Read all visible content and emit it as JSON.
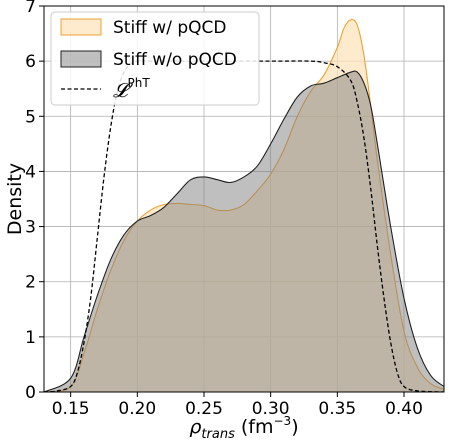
{
  "chart_data": {
    "type": "area",
    "xlabel": "ρ_trans (fm⁻³)",
    "ylabel": "Density",
    "xlim": [
      0.13,
      0.43
    ],
    "ylim": [
      0,
      7.0
    ],
    "x_ticks": [
      0.15,
      0.2,
      0.25,
      0.3,
      0.35,
      0.4
    ],
    "x_tick_labels": [
      "0.15",
      "0.20",
      "0.25",
      "0.30",
      "0.35",
      "0.40"
    ],
    "y_ticks": [
      0,
      1,
      2,
      3,
      4,
      5,
      6,
      7
    ],
    "y_tick_labels": [
      "0",
      "1",
      "2",
      "3",
      "4",
      "5",
      "6",
      "7"
    ],
    "grid": true,
    "legend_position": "top-left",
    "series": [
      {
        "name": "Stiff w/ pQCD",
        "style": "filled",
        "fill": "#fde3b8",
        "stroke": "#f0a030",
        "x": [
          0.13,
          0.15,
          0.16,
          0.17,
          0.18,
          0.19,
          0.2,
          0.21,
          0.22,
          0.23,
          0.24,
          0.25,
          0.26,
          0.27,
          0.28,
          0.29,
          0.3,
          0.31,
          0.32,
          0.33,
          0.34,
          0.35,
          0.355,
          0.36,
          0.365,
          0.37,
          0.375,
          0.38,
          0.39,
          0.4,
          0.41,
          0.42,
          0.43
        ],
        "y": [
          0.0,
          0.1,
          0.7,
          1.5,
          2.2,
          2.75,
          3.1,
          3.3,
          3.4,
          3.42,
          3.4,
          3.38,
          3.3,
          3.3,
          3.4,
          3.65,
          3.95,
          4.4,
          5.0,
          5.45,
          5.75,
          6.25,
          6.6,
          6.75,
          6.65,
          6.1,
          5.2,
          4.2,
          2.5,
          1.1,
          0.45,
          0.15,
          0.05
        ]
      },
      {
        "name": "Stiff w/o pQCD",
        "style": "filled",
        "fill": "#7f7f7f",
        "stroke": "#222222",
        "x": [
          0.13,
          0.15,
          0.16,
          0.17,
          0.18,
          0.19,
          0.2,
          0.21,
          0.22,
          0.23,
          0.24,
          0.25,
          0.26,
          0.27,
          0.28,
          0.29,
          0.3,
          0.31,
          0.32,
          0.33,
          0.34,
          0.35,
          0.36,
          0.365,
          0.37,
          0.375,
          0.38,
          0.39,
          0.4,
          0.41,
          0.42,
          0.43
        ],
        "y": [
          0.0,
          0.25,
          1.0,
          1.75,
          2.4,
          2.85,
          3.1,
          3.2,
          3.35,
          3.6,
          3.85,
          3.9,
          3.85,
          3.8,
          3.9,
          4.1,
          4.5,
          4.95,
          5.35,
          5.55,
          5.6,
          5.7,
          5.8,
          5.8,
          5.6,
          5.2,
          4.5,
          3.0,
          1.7,
          0.8,
          0.3,
          0.1
        ]
      },
      {
        "name": "𝓛^PhT",
        "label_main": "𝓛",
        "label_sup": "PhT",
        "style": "dashed",
        "stroke": "#000000",
        "x": [
          0.13,
          0.14,
          0.15,
          0.155,
          0.16,
          0.165,
          0.17,
          0.175,
          0.18,
          0.185,
          0.19,
          0.195,
          0.2,
          0.21,
          0.25,
          0.3,
          0.33,
          0.34,
          0.35,
          0.36,
          0.365,
          0.37,
          0.375,
          0.38,
          0.385,
          0.39,
          0.395,
          0.4,
          0.41,
          0.43
        ],
        "y": [
          0.0,
          0.02,
          0.1,
          0.35,
          0.9,
          1.7,
          2.8,
          3.9,
          4.8,
          5.45,
          5.8,
          5.95,
          6.0,
          6.0,
          6.0,
          6.0,
          6.0,
          5.97,
          5.9,
          5.65,
          5.25,
          4.6,
          3.7,
          2.65,
          1.7,
          0.9,
          0.35,
          0.1,
          0.02,
          0.0
        ]
      }
    ]
  }
}
